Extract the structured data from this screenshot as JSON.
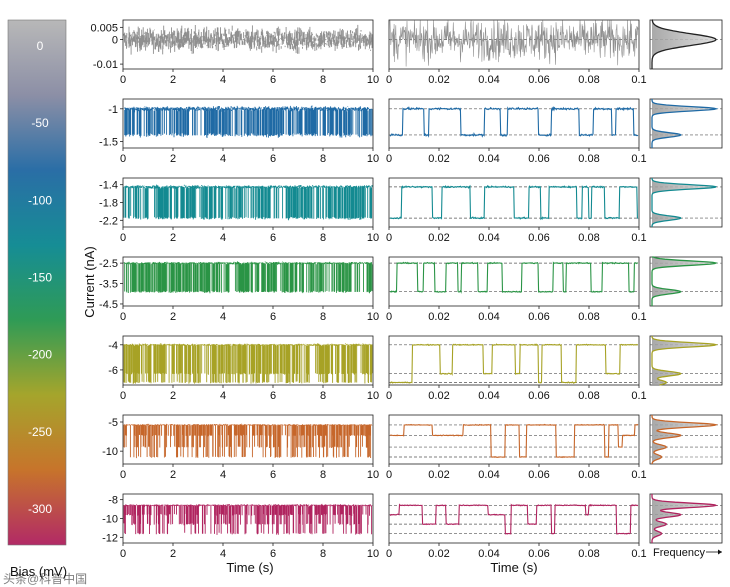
{
  "labels": {
    "colorbar_label": "Bias (mV)",
    "ylabel": "Current (nA)",
    "xlabel_left": "Time (s)",
    "xlabel_right": "Time (s)",
    "histogram_label": "Frequency",
    "watermark": "头条@科普中国"
  },
  "colorbar": {
    "ticks": [
      "0",
      "-50",
      "-100",
      "-150",
      "-200",
      "-250",
      "-300"
    ],
    "values": [
      0,
      -50,
      -100,
      -150,
      -200,
      -250,
      -300
    ],
    "colors": [
      "#b8b8b8",
      "#8c8fa6",
      "#2a6ea6",
      "#168d95",
      "#2f9b56",
      "#a5a52c",
      "#c7742b",
      "#b22a66"
    ]
  },
  "chart_data": {
    "type": "line",
    "description_free": true,
    "left_xticks": [
      "0",
      "2",
      "4",
      "6",
      "8",
      "10"
    ],
    "left_xlim": [
      0,
      10
    ],
    "right_xticks": [
      "0",
      "0.02",
      "0.04",
      "0.06",
      "0.08",
      "0.1"
    ],
    "right_xlim": [
      0,
      0.1
    ],
    "rows": [
      {
        "bias_mV": 0,
        "color": "#8f8f8f",
        "yticks": [
          "0.005",
          "0",
          "-0.01"
        ],
        "ytick_values": [
          0.005,
          0,
          -0.01
        ],
        "ylim": [
          -0.012,
          0.008
        ],
        "levels": [
          0.0
        ],
        "noise": 0.004,
        "right_noise": 0.006,
        "switching": false
      },
      {
        "bias_mV": -50,
        "color": "#1f6aa5",
        "yticks": [
          "-1",
          "-1.5"
        ],
        "ytick_values": [
          -1,
          -1.5
        ],
        "ylim": [
          -1.6,
          -0.85
        ],
        "levels": [
          -1.0,
          -1.4
        ],
        "noise": 0.03
      },
      {
        "bias_mV": -100,
        "color": "#138a91",
        "yticks": [
          "-1.4",
          "-1.8",
          "-2.2"
        ],
        "ytick_values": [
          -1.4,
          -1.8,
          -2.2
        ],
        "ylim": [
          -2.35,
          -1.25
        ],
        "levels": [
          -1.45,
          -2.15
        ],
        "noise": 0.03
      },
      {
        "bias_mV": -150,
        "color": "#2a9445",
        "yticks": [
          "-2.5",
          "-3.5",
          "-4.5"
        ],
        "ytick_values": [
          -2.5,
          -3.5,
          -4.5
        ],
        "ylim": [
          -4.6,
          -2.2
        ],
        "levels": [
          -2.5,
          -3.9
        ],
        "noise": 0.05
      },
      {
        "bias_mV": -200,
        "color": "#a7a225",
        "yticks": [
          "-4",
          "-6"
        ],
        "ytick_values": [
          -4,
          -6
        ],
        "ylim": [
          -7.2,
          -3.3
        ],
        "levels": [
          -4.0,
          -6.3,
          -7.0
        ],
        "noise": 0.07
      },
      {
        "bias_mV": -250,
        "color": "#c6662a",
        "yticks": [
          "-5",
          "-10"
        ],
        "ytick_values": [
          -5,
          -10
        ],
        "ylim": [
          -12.2,
          -3.8
        ],
        "levels": [
          -5.5,
          -7.3,
          -9.3,
          -11.0
        ],
        "noise": 0.12
      },
      {
        "bias_mV": -300,
        "color": "#b0245f",
        "yticks": [
          "-8",
          "-10",
          "-12"
        ],
        "ytick_values": [
          -8,
          -10,
          -12
        ],
        "ylim": [
          -12.6,
          -7.4
        ],
        "levels": [
          -8.6,
          -9.6,
          -10.6,
          -11.6
        ],
        "noise": 0.09
      }
    ]
  }
}
